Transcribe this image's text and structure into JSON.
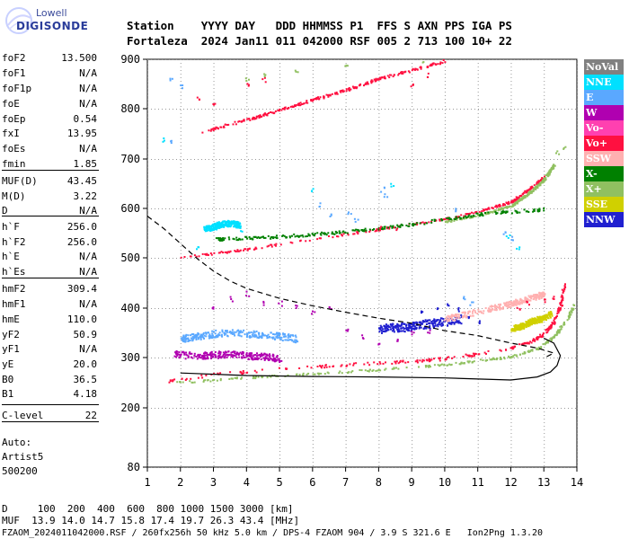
{
  "logo": {
    "top": "Lowell",
    "bottom": "DIGISONDE"
  },
  "header": {
    "line1": "Station    YYYY DAY   DDD HHMMSS P1  FFS S AXN PPS IGA PS",
    "line2": "Fortaleza  2024 Jan11 011 042000 RSF 005 2 713 100 10+ 22"
  },
  "params": [
    {
      "label": "foF2",
      "value": "13.500"
    },
    {
      "label": "foF1",
      "value": "N/A"
    },
    {
      "label": "foF1p",
      "value": "N/A"
    },
    {
      "label": "foE",
      "value": "N/A"
    },
    {
      "label": "foEp",
      "value": "0.54"
    },
    {
      "label": "fxI",
      "value": "13.95"
    },
    {
      "label": "foEs",
      "value": "N/A"
    },
    {
      "label": "fmin",
      "value": "1.85"
    },
    {
      "label": "MUF(D)",
      "value": "43.45"
    },
    {
      "label": "M(D)",
      "value": "3.22"
    },
    {
      "label": "D",
      "value": "N/A"
    },
    {
      "label": "h`F",
      "value": "256.0"
    },
    {
      "label": "h`F2",
      "value": "256.0"
    },
    {
      "label": "h`E",
      "value": "N/A"
    },
    {
      "label": "h`Es",
      "value": "N/A"
    },
    {
      "label": "hmF2",
      "value": "309.4"
    },
    {
      "label": "hmF1",
      "value": "N/A"
    },
    {
      "label": "hmE",
      "value": "110.0"
    },
    {
      "label": "yF2",
      "value": "50.9"
    },
    {
      "label": "yF1",
      "value": "N/A"
    },
    {
      "label": "yE",
      "value": "20.0"
    },
    {
      "label": "B0",
      "value": "36.5"
    },
    {
      "label": "B1",
      "value": "4.18"
    },
    {
      "label": "C-level",
      "value": "22"
    }
  ],
  "auto": {
    "line1": "Auto:",
    "line2": "Artist5",
    "line3": "500200"
  },
  "legend": [
    {
      "label": "NoVal",
      "color": "#808080"
    },
    {
      "label": "NNE",
      "color": "#00e0ff"
    },
    {
      "label": "E",
      "color": "#5aa8ff"
    },
    {
      "label": "W",
      "color": "#b000b0"
    },
    {
      "label": "Vo-",
      "color": "#ff40b0"
    },
    {
      "label": "Vo+",
      "color": "#ff1040"
    },
    {
      "label": "SSW",
      "color": "#ffb0b0"
    },
    {
      "label": "X-",
      "color": "#008000"
    },
    {
      "label": "X+",
      "color": "#90c060"
    },
    {
      "label": "SSE",
      "color": "#d0d000"
    },
    {
      "label": "NNW",
      "color": "#2020d0"
    }
  ],
  "footer": {
    "line1": "D     100  200  400  600  800 1000 1500 3000 [km]",
    "line2": "MUF  13.9 14.0 14.7 15.8 17.4 19.7 26.3 43.4 [MHz]",
    "line3": "FZAOM_2024011042000.RSF / 260fx256h 50 kHz 5.0 km / DPS-4 FZAOM 904 / 3.9 S 321.6 E   Ion2Png 1.3.20"
  },
  "chart_data": {
    "type": "scatter",
    "x_ticks": [
      1,
      2,
      3,
      4,
      5,
      6,
      7,
      8,
      9,
      10,
      11,
      12,
      13,
      14
    ],
    "y_ticks": [
      80,
      200,
      300,
      400,
      500,
      600,
      700,
      800,
      900
    ],
    "xlim": [
      1,
      14
    ],
    "grid": true,
    "profile_solid": {
      "x": [
        2.0,
        4.0,
        6.0,
        8.0,
        10.0,
        11.0,
        12.0,
        12.8,
        13.2,
        13.4,
        13.5,
        13.3,
        13.0
      ],
      "y": [
        270,
        265,
        263,
        262,
        260,
        258,
        256,
        262,
        272,
        285,
        305,
        330,
        340
      ]
    },
    "profile_dashed": {
      "x": [
        1.0,
        1.5,
        2.0,
        2.5,
        3.0,
        3.5,
        4.0,
        5.0,
        6.0,
        7.0,
        8.0,
        9.0,
        10.0,
        11.0,
        12.0,
        12.8,
        13.3,
        13.0
      ],
      "y": [
        585,
        560,
        530,
        500,
        475,
        455,
        440,
        420,
        405,
        392,
        380,
        370,
        355,
        345,
        330,
        320,
        310,
        300
      ]
    },
    "traces": [
      {
        "name": "Vo+",
        "color": "#ff1040",
        "x": [
          1.6,
          3.0,
          5.0,
          7.0,
          9.0,
          10.0,
          11.0,
          12.0,
          12.6,
          13.0,
          13.3,
          13.5,
          13.6
        ],
        "y": [
          255,
          268,
          280,
          288,
          295,
          300,
          310,
          322,
          335,
          350,
          375,
          410,
          450
        ],
        "spread": 6
      },
      {
        "name": "X+",
        "color": "#90c060",
        "x": [
          1.9,
          4.0,
          6.0,
          8.0,
          10.0,
          11.0,
          12.0,
          12.8,
          13.3,
          13.7,
          13.9
        ],
        "y": [
          252,
          262,
          270,
          278,
          288,
          296,
          304,
          320,
          345,
          380,
          410
        ],
        "spread": 4
      },
      {
        "name": "Vo+",
        "color": "#ff1040",
        "x": [
          2.0,
          4.0,
          6.0,
          8.0,
          10.0,
          11.0,
          12.0,
          12.5,
          13.0
        ],
        "y": [
          503,
          520,
          540,
          560,
          580,
          596,
          615,
          638,
          665
        ],
        "spread": 4
      },
      {
        "name": "X+",
        "color": "#90c060",
        "x": [
          10.0,
          11.0,
          12.0,
          12.5,
          13.0,
          13.3
        ],
        "y": [
          575,
          588,
          607,
          630,
          660,
          690
        ],
        "spread": 3
      },
      {
        "name": "Vo+",
        "color": "#ff1040",
        "x": [
          2.6,
          4.0,
          5.0,
          6.0,
          7.0,
          8.0,
          9.0,
          10.0
        ],
        "y": [
          755,
          780,
          800,
          820,
          840,
          862,
          880,
          898
        ],
        "spread": 5
      },
      {
        "name": "W",
        "color": "#b000b0",
        "x": [
          1.8,
          2.5,
          3.0,
          3.5,
          4.0,
          4.5,
          5.0
        ],
        "y": [
          310,
          305,
          308,
          310,
          306,
          304,
          300
        ],
        "spread": 14
      },
      {
        "name": "E",
        "color": "#5aa8ff",
        "x": [
          2.0,
          2.5,
          3.0,
          3.5,
          4.0,
          4.5,
          5.0,
          5.5
        ],
        "y": [
          340,
          345,
          350,
          352,
          350,
          348,
          345,
          340
        ],
        "spread": 14
      },
      {
        "name": "NNE",
        "color": "#00e0ff",
        "x": [
          2.7,
          3.0,
          3.2,
          3.5,
          3.8
        ],
        "y": [
          560,
          565,
          570,
          572,
          568
        ],
        "spread": 12
      },
      {
        "name": "NNW",
        "color": "#2020d0",
        "x": [
          8.0,
          8.5,
          9.0,
          9.5,
          10.0,
          10.5
        ],
        "y": [
          360,
          362,
          365,
          370,
          375,
          380
        ],
        "spread": 18
      },
      {
        "name": "SSE",
        "color": "#d0d000",
        "x": [
          12.0,
          12.3,
          12.6,
          12.9,
          13.2
        ],
        "y": [
          360,
          365,
          375,
          380,
          390
        ],
        "spread": 12
      },
      {
        "name": "SSW",
        "color": "#ffb0b0",
        "x": [
          10.0,
          11.0,
          12.0,
          12.5,
          13.0
        ],
        "y": [
          380,
          395,
          410,
          420,
          430
        ],
        "spread": 12
      },
      {
        "name": "X-",
        "color": "#008000",
        "x": [
          3.0,
          5.0,
          7.0,
          9.0,
          11.0,
          13.0
        ],
        "y": [
          540,
          545,
          555,
          570,
          590,
          600
        ],
        "spread": 6
      }
    ],
    "dots": [
      {
        "name": "E",
        "color": "#5aa8ff",
        "x": [
          1.7,
          1.7,
          2.0,
          6.2,
          6.5,
          7.1,
          7.3,
          8.1,
          8.2,
          10.3,
          10.6,
          10.8,
          11.8,
          12.0
        ],
        "y": [
          860,
          735,
          845,
          610,
          590,
          590,
          580,
          640,
          630,
          600,
          420,
          410,
          555,
          540
        ]
      },
      {
        "name": "W",
        "color": "#b000b0",
        "x": [
          3.0,
          3.5,
          4.0,
          4.5,
          5.0,
          5.5,
          6.0,
          6.5,
          7.0,
          7.5,
          8.0,
          8.5,
          9.0,
          9.5
        ],
        "y": [
          400,
          420,
          430,
          410,
          410,
          405,
          395,
          400,
          360,
          345,
          330,
          340,
          350,
          355
        ]
      },
      {
        "name": "Vo+",
        "color": "#ff1040",
        "x": [
          2.5,
          3.0,
          4.0,
          4.5,
          8.0,
          8.5,
          9.0,
          9.5,
          12.2,
          12.5,
          13.0,
          13.3
        ],
        "y": [
          820,
          810,
          850,
          860,
          560,
          560,
          850,
          870,
          400,
          410,
          415,
          425
        ]
      },
      {
        "name": "NNE",
        "color": "#00e0ff",
        "x": [
          1.5,
          2.5,
          3.8,
          6.0,
          8.4,
          11.9,
          12.2
        ],
        "y": [
          740,
          520,
          560,
          640,
          650,
          545,
          520
        ]
      },
      {
        "name": "X+",
        "color": "#90c060",
        "x": [
          4.0,
          4.5,
          5.5,
          7.0,
          9.3,
          13.4,
          13.6
        ],
        "y": [
          860,
          870,
          880,
          890,
          900,
          715,
          725
        ]
      },
      {
        "name": "NNW",
        "color": "#2020d0",
        "x": [
          9.3,
          9.8,
          10.1,
          10.4,
          10.7,
          11.0
        ],
        "y": [
          395,
          405,
          410,
          400,
          385,
          375
        ]
      }
    ]
  }
}
